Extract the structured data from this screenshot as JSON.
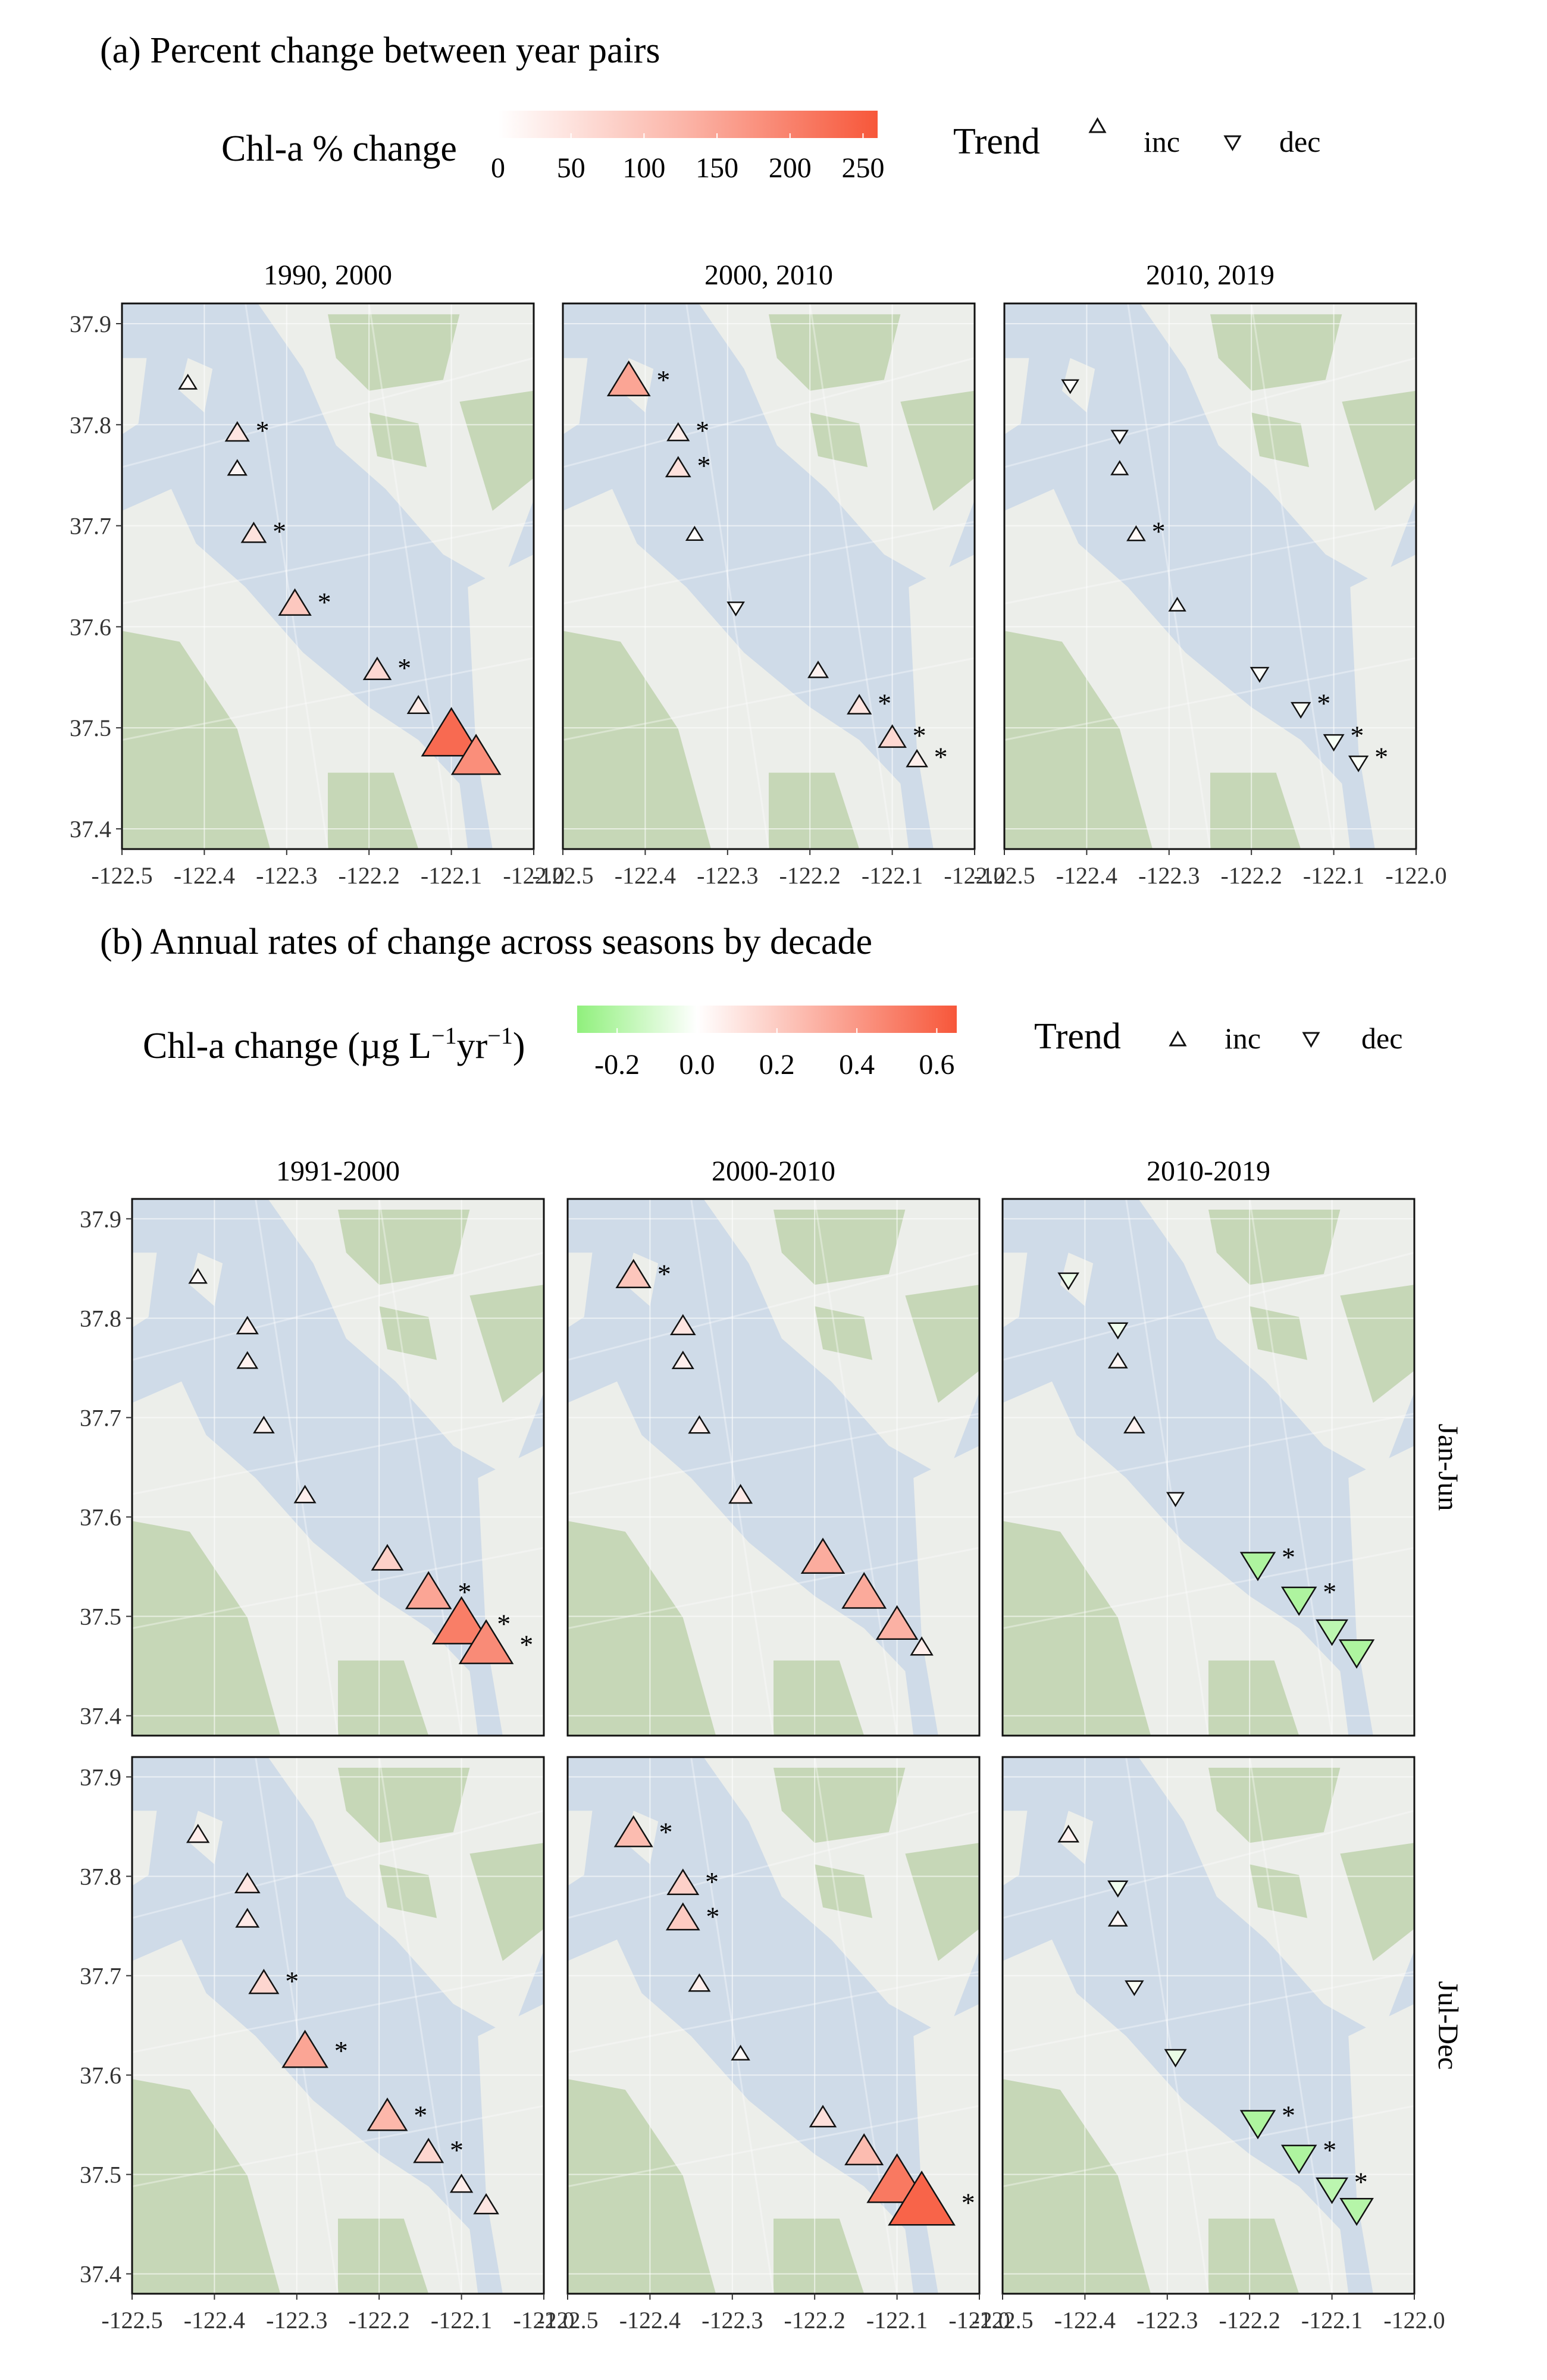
{
  "colors": {
    "neg": "#90f07c",
    "mid": "#ffffff",
    "pos": "#f7573a",
    "water": "#cfdbe8",
    "land": "#eceeea",
    "hill": "#b9cfa6",
    "road": "#ffffff"
  },
  "panel_a": {
    "title": "(a) Percent change between year pairs",
    "legend_title": "Chl-a % change",
    "legend_ticks": [
      "0",
      "50",
      "100",
      "150",
      "200",
      "250"
    ],
    "legend_range": [
      0,
      260
    ],
    "trend_title": "Trend",
    "trend_inc": "inc",
    "trend_dec": "dec",
    "facets": [
      "1990, 2000",
      "2000, 2010",
      "2010, 2019"
    ],
    "y_ticks": [
      "37.9",
      "37.8",
      "37.7",
      "37.6",
      "37.5",
      "37.4"
    ],
    "x_ticks": [
      "-122.5",
      "-122.4",
      "-122.3",
      "-122.2",
      "-122.1",
      "-122.0"
    ]
  },
  "panel_b": {
    "title": "(b) Annual rates of change across seasons by decade",
    "legend_title": "Chl-a change (µg L",
    "legend_sup1": "−1",
    "legend_mid": "yr",
    "legend_sup2": "−1",
    "legend_close": ")",
    "legend_ticks": [
      "-0.2",
      "0.0",
      "0.2",
      "0.4",
      "0.6"
    ],
    "legend_range": [
      -0.3,
      0.65
    ],
    "trend_title": "Trend",
    "trend_inc": "inc",
    "trend_dec": "dec",
    "facets": [
      "1991-2000",
      "2000-2010",
      "2010-2019"
    ],
    "rows": [
      "Jan-Jun",
      "Jul-Dec"
    ],
    "y_ticks": [
      "37.9",
      "37.8",
      "37.7",
      "37.6",
      "37.5",
      "37.4"
    ],
    "x_ticks": [
      "-122.5",
      "-122.4",
      "-122.3",
      "-122.2",
      "-122.1",
      "-122.0"
    ]
  },
  "chart_data": [
    {
      "type": "scatter",
      "title": "(a) Percent change between year pairs",
      "xlim": [
        -122.5,
        -122.0
      ],
      "ylim": [
        37.38,
        37.92
      ],
      "stations": [
        {
          "lon": -122.42,
          "lat": 37.84
        },
        {
          "lon": -122.36,
          "lat": 37.79
        },
        {
          "lon": -122.36,
          "lat": 37.755
        },
        {
          "lon": -122.34,
          "lat": 37.69
        },
        {
          "lon": -122.29,
          "lat": 37.62
        },
        {
          "lon": -122.19,
          "lat": 37.555
        },
        {
          "lon": -122.14,
          "lat": 37.52
        },
        {
          "lon": -122.1,
          "lat": 37.488
        },
        {
          "lon": -122.07,
          "lat": 37.467
        }
      ],
      "panels": [
        {
          "facet": "1990, 2000",
          "values": [
            10,
            40,
            15,
            45,
            85,
            60,
            30,
            230,
            175
          ],
          "sig": [
            false,
            true,
            false,
            true,
            true,
            true,
            false,
            false,
            false
          ]
        },
        {
          "facet": "2000, 2010",
          "values": [
            140,
            30,
            45,
            5,
            -3,
            20,
            40,
            60,
            25
          ],
          "sig": [
            true,
            true,
            true,
            false,
            false,
            false,
            true,
            true,
            true
          ]
        },
        {
          "facet": "2010, 2019",
          "values": [
            -3,
            -2,
            5,
            10,
            2,
            -10,
            -15,
            -20,
            -15
          ],
          "sig": [
            false,
            false,
            false,
            true,
            false,
            false,
            true,
            true,
            true
          ]
        }
      ]
    },
    {
      "type": "scatter",
      "title": "(b) Annual rates of change across seasons by decade",
      "xlim": [
        -122.5,
        -122.0
      ],
      "ylim": [
        37.38,
        37.92
      ],
      "stations": [
        {
          "lon": -122.42,
          "lat": 37.84
        },
        {
          "lon": -122.36,
          "lat": 37.79
        },
        {
          "lon": -122.36,
          "lat": 37.755
        },
        {
          "lon": -122.34,
          "lat": 37.69
        },
        {
          "lon": -122.29,
          "lat": 37.62
        },
        {
          "lon": -122.19,
          "lat": 37.555
        },
        {
          "lon": -122.14,
          "lat": 37.52
        },
        {
          "lon": -122.1,
          "lat": 37.488
        },
        {
          "lon": -122.07,
          "lat": 37.467
        }
      ],
      "panels": [
        {
          "row": "Jan-Jun",
          "facet": "1991-2000",
          "values": [
            0.02,
            0.06,
            0.05,
            0.05,
            0.06,
            0.18,
            0.35,
            0.5,
            0.45
          ],
          "sig": [
            false,
            false,
            false,
            false,
            false,
            false,
            true,
            true,
            true
          ]
        },
        {
          "row": "Jan-Jun",
          "facet": "2000-2010",
          "values": [
            0.22,
            0.1,
            0.06,
            0.06,
            0.08,
            0.32,
            0.33,
            0.3,
            0.07
          ],
          "sig": [
            true,
            false,
            false,
            false,
            false,
            false,
            false,
            false,
            false
          ]
        },
        {
          "row": "Jan-Jun",
          "facet": "2010-2019",
          "values": [
            -0.05,
            -0.04,
            0.03,
            0.05,
            -0.01,
            -0.22,
            -0.22,
            -0.18,
            -0.22
          ],
          "sig": [
            false,
            false,
            false,
            false,
            false,
            true,
            true,
            false,
            false
          ]
        },
        {
          "row": "Jul-Dec",
          "facet": "1991-2000",
          "values": [
            0.07,
            0.1,
            0.08,
            0.16,
            0.35,
            0.28,
            0.16,
            0.07,
            0.1
          ],
          "sig": [
            false,
            false,
            false,
            true,
            true,
            true,
            true,
            false,
            false
          ]
        },
        {
          "row": "Jul-Dec",
          "facet": "2000-2010",
          "values": [
            0.26,
            0.18,
            0.2,
            0.06,
            0.02,
            0.12,
            0.26,
            0.52,
            0.6
          ],
          "sig": [
            true,
            true,
            true,
            false,
            false,
            false,
            false,
            false,
            true
          ]
        },
        {
          "row": "Jul-Dec",
          "facet": "2010-2019",
          "values": [
            0.05,
            -0.04,
            0.03,
            -0.02,
            -0.06,
            -0.22,
            -0.22,
            -0.18,
            -0.2
          ],
          "sig": [
            false,
            false,
            false,
            false,
            false,
            true,
            true,
            true,
            false
          ]
        }
      ]
    }
  ]
}
